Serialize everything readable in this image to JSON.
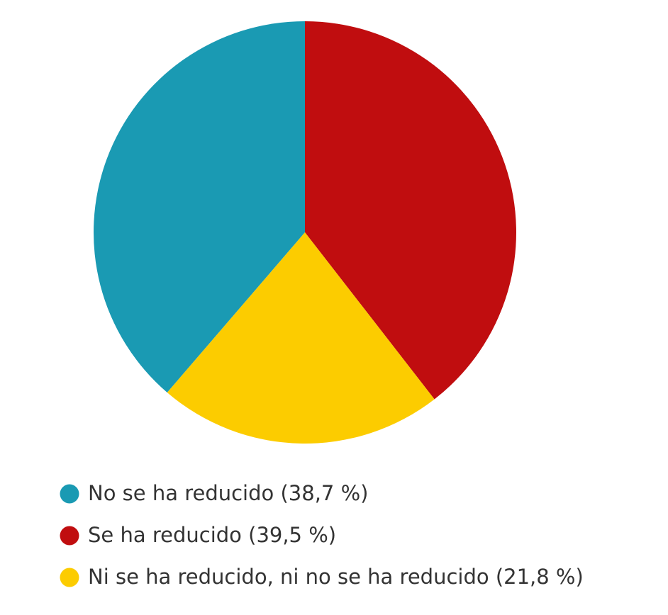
{
  "chart_data": {
    "type": "pie",
    "categories": [
      "No se ha reducido (38,7 %)",
      "Se ha reducido (39,5 %)",
      "Ni se ha reducido, ni no se ha reducido (21,8 %)"
    ],
    "values": [
      38.7,
      39.5,
      21.8
    ],
    "colors": [
      "#1a9ab3",
      "#c00d0f",
      "#fccc00"
    ]
  }
}
